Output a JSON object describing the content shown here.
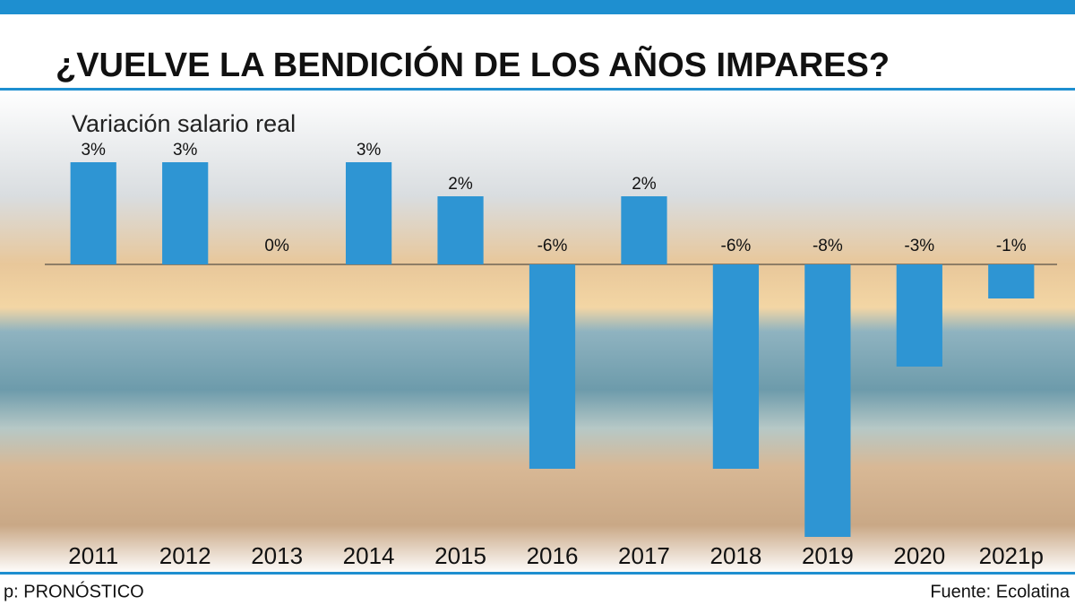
{
  "chart_data": {
    "type": "bar",
    "title": "¿VUELVE LA BENDICIÓN DE LOS AÑOS IMPARES?",
    "subtitle": "Variación salario real",
    "categories": [
      "2011",
      "2012",
      "2013",
      "2014",
      "2015",
      "2016",
      "2017",
      "2018",
      "2019",
      "2020",
      "2021p"
    ],
    "values": [
      3,
      3,
      0,
      3,
      2,
      -6,
      2,
      -6,
      -8,
      -3,
      -1
    ],
    "value_labels": [
      "3%",
      "3%",
      "0%",
      "3%",
      "2%",
      "-6%",
      "2%",
      "-6%",
      "-8%",
      "-3%",
      "-1%"
    ],
    "color": "#2e95d3",
    "ylim": [
      -8.2,
      3.5
    ],
    "note": "p: PRONÓSTICO",
    "source": "Fuente: Ecolatina"
  }
}
